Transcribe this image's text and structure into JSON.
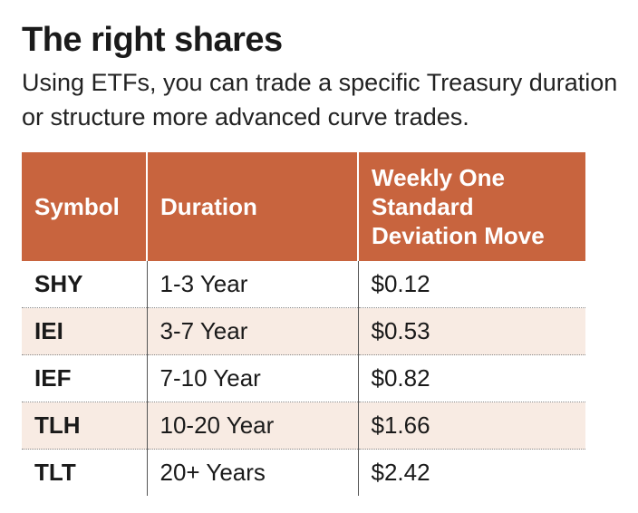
{
  "title": "The right shares",
  "subtitle": "Using ETFs, you can trade a specific Treasury duration or structure more advanced curve trades.",
  "table": {
    "headers": [
      "Symbol",
      "Duration",
      "Weekly One Standard Deviation Move"
    ],
    "rows": [
      [
        "SHY",
        "1-3 Year",
        "$0.12"
      ],
      [
        "IEI",
        "3-7 Year",
        "$0.53"
      ],
      [
        "IEF",
        "7-10 Year",
        "$0.82"
      ],
      [
        "TLH",
        "10-20 Year",
        "$1.66"
      ],
      [
        "TLT",
        "20+ Years",
        "$2.42"
      ]
    ]
  },
  "colors": {
    "header_bg": "#c8643e",
    "alt_row_bg": "#f8ebe3",
    "header_text": "#ffffff"
  }
}
